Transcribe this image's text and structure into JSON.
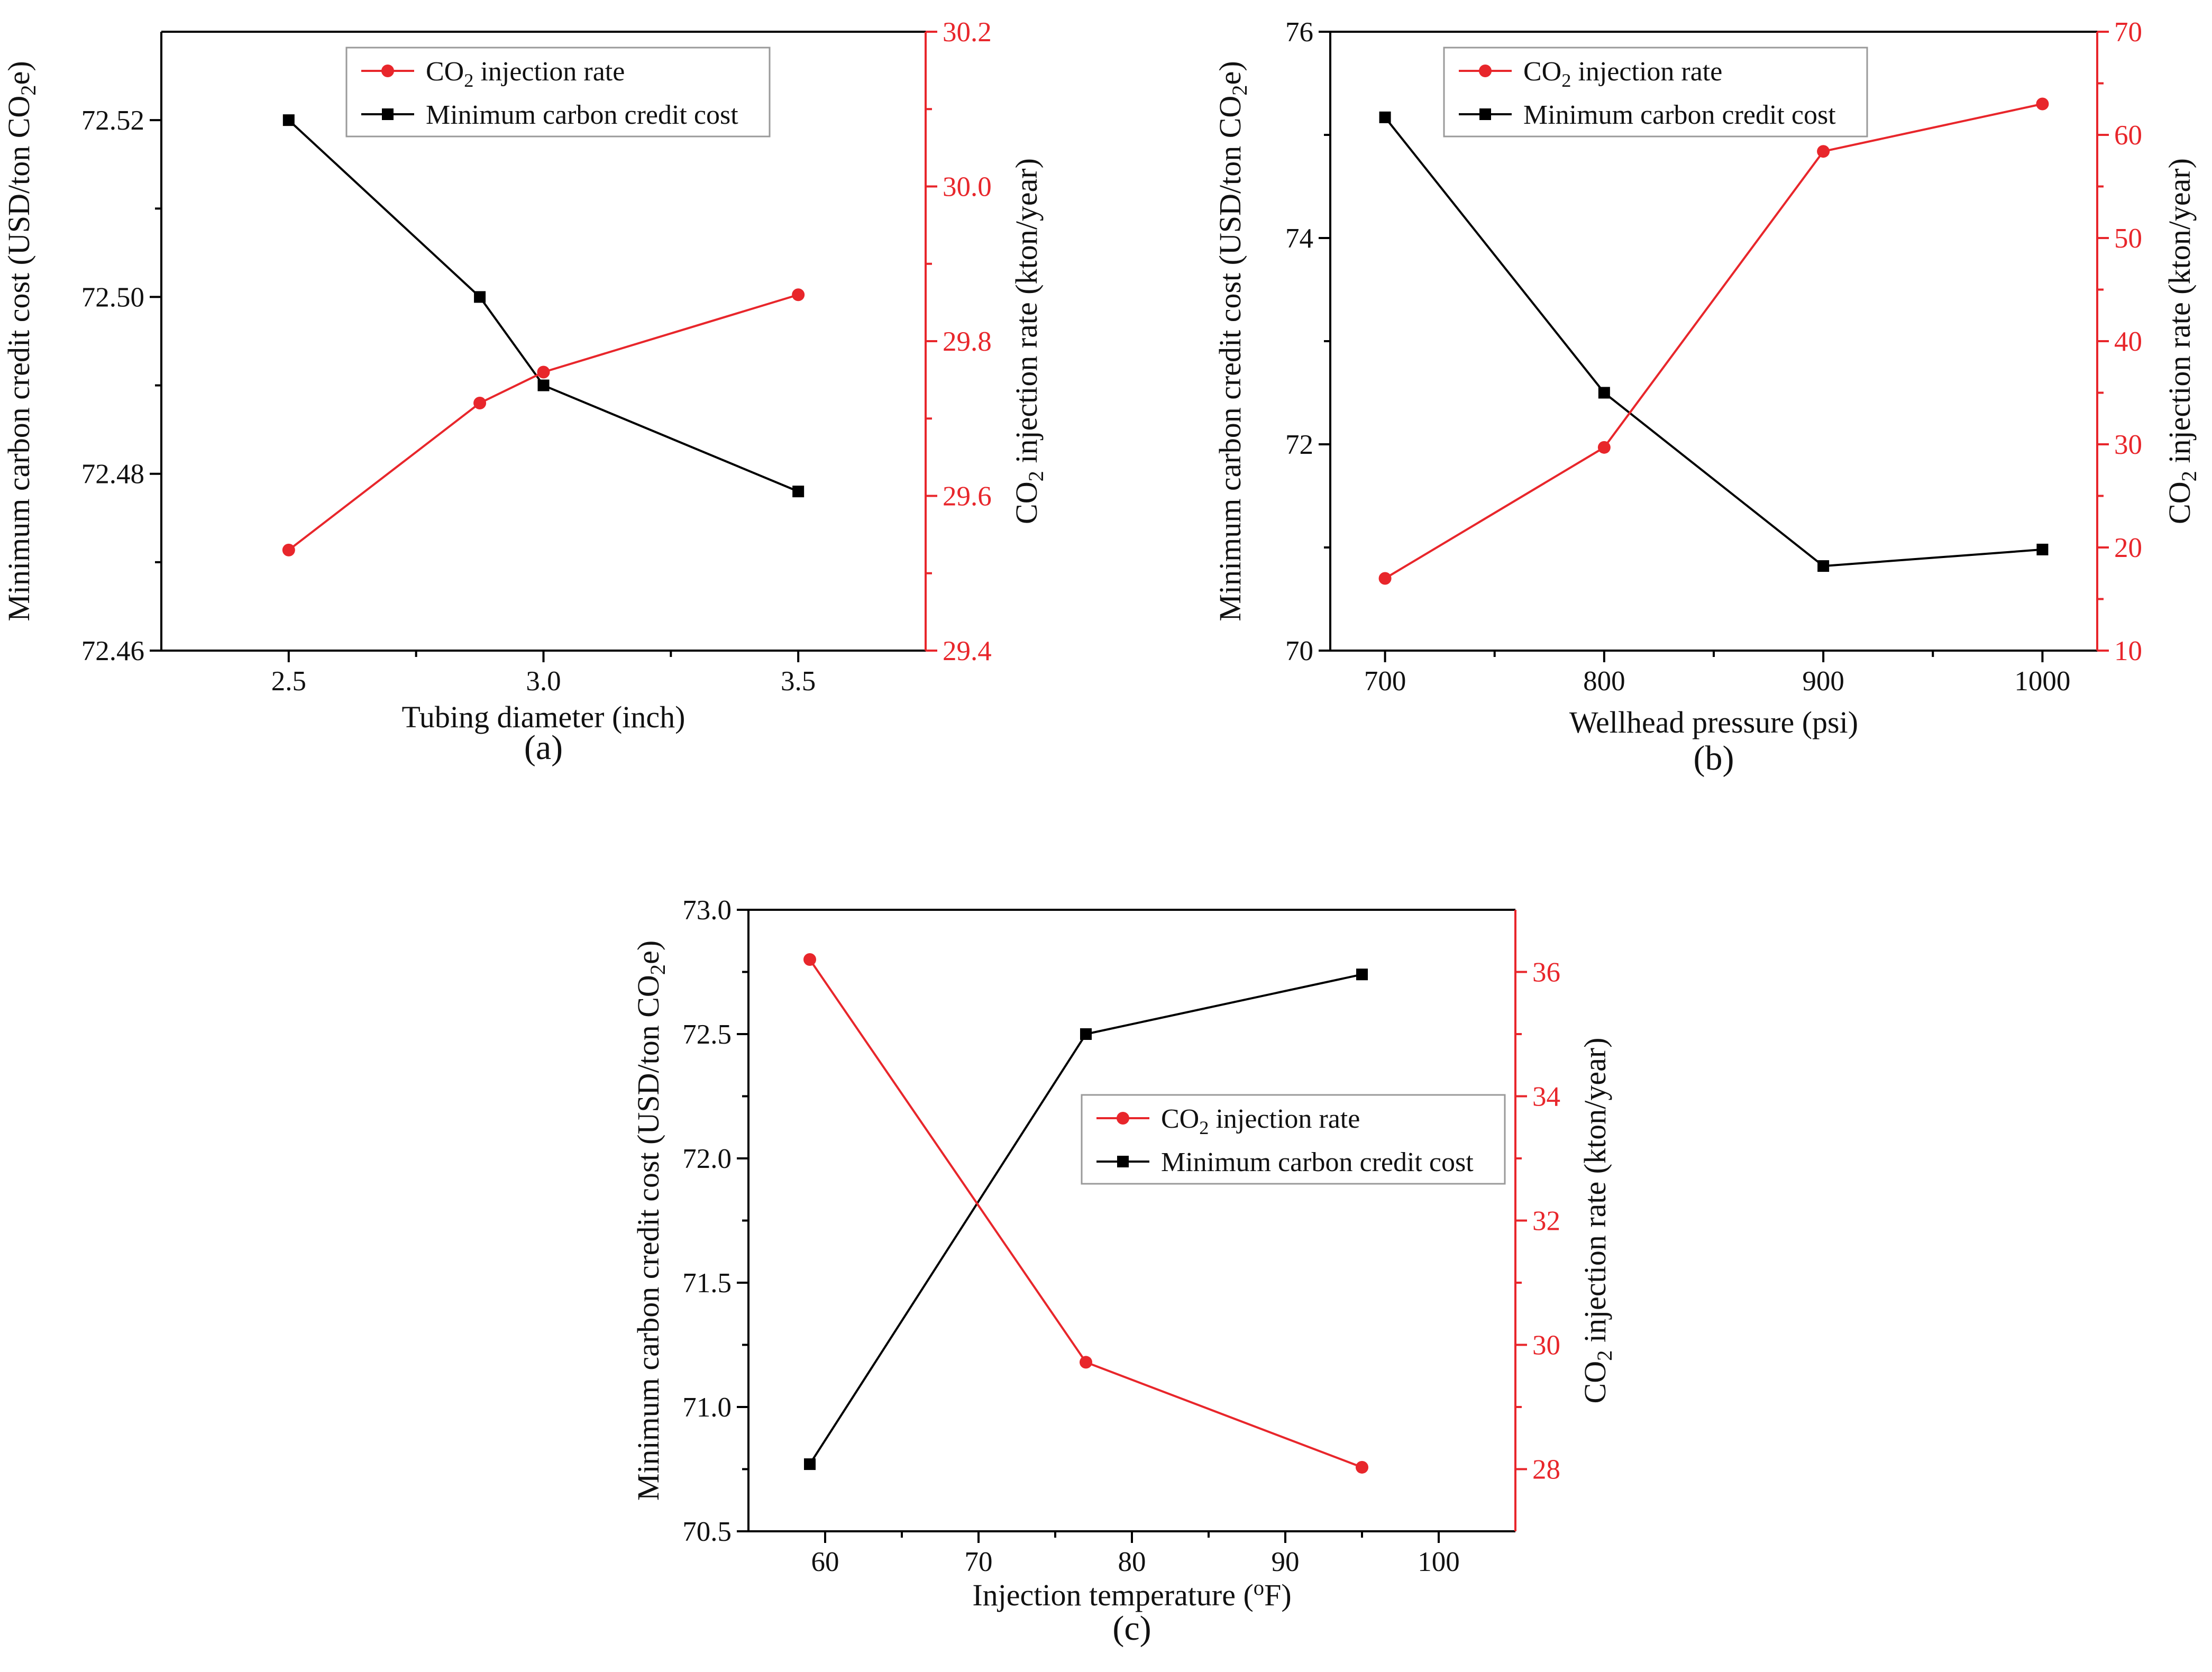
{
  "figure": {
    "co2_sub": "2"
  },
  "chart_data": [
    {
      "id": "a",
      "type": "line",
      "caption": "(a)",
      "xlabel": "Tubing diameter (inch)",
      "ylabel_left": "Minimum carbon credit cost (USD/ton CO2e)",
      "ylabel_right": "CO2 injection rate (kton/year)",
      "xlim": [
        2.25,
        3.75
      ],
      "ylim_left": [
        72.46,
        72.53
      ],
      "ylim_right": [
        29.4,
        30.2
      ],
      "xticks": [
        2.5,
        3.0,
        3.5
      ],
      "xticks_minor": [
        2.75,
        3.25
      ],
      "xtick_labels": [
        "2.5",
        "3.0",
        "3.5"
      ],
      "yticks_left": [
        72.46,
        72.48,
        72.5,
        72.52
      ],
      "ytick_labels_left": [
        "72.46",
        "72.48",
        "72.50",
        "72.52"
      ],
      "yticks_right": [
        29.4,
        29.6,
        29.8,
        30.0,
        30.2
      ],
      "ytick_labels_right": [
        "29.4",
        "29.6",
        "29.8",
        "30.0",
        "30.2"
      ],
      "legend": {
        "position": "top-right",
        "entries": [
          "CO2 injection rate",
          "Minimum carbon credit cost"
        ]
      },
      "series": [
        {
          "name": "Minimum carbon credit cost",
          "axis": "left",
          "color": "#000000",
          "marker": "square",
          "x": [
            2.5,
            2.875,
            3.0,
            3.5
          ],
          "values": [
            72.52,
            72.5,
            72.49,
            72.478
          ]
        },
        {
          "name": "CO2 injection rate",
          "axis": "right",
          "color": "#e8262b",
          "marker": "circle",
          "x": [
            2.5,
            2.875,
            3.0,
            3.5
          ],
          "values": [
            29.53,
            29.72,
            29.76,
            29.86
          ]
        }
      ]
    },
    {
      "id": "b",
      "type": "line",
      "caption": "(b)",
      "xlabel": "Wellhead pressure (psi)",
      "ylabel_left": "Minimum carbon credit cost (USD/ton CO2e)",
      "ylabel_right": "CO2 injection rate (kton/year)",
      "xlim": [
        675,
        1025
      ],
      "ylim_left": [
        70,
        76
      ],
      "ylim_right": [
        10,
        70
      ],
      "xticks": [
        700,
        800,
        900,
        1000
      ],
      "xticks_minor": [
        750,
        850,
        950
      ],
      "xtick_labels": [
        "700",
        "800",
        "900",
        "1000"
      ],
      "yticks_left": [
        70,
        72,
        74,
        76
      ],
      "ytick_labels_left": [
        "70",
        "72",
        "74",
        "76"
      ],
      "yticks_right": [
        10,
        20,
        30,
        40,
        50,
        60,
        70
      ],
      "ytick_labels_right": [
        "10",
        "20",
        "30",
        "40",
        "50",
        "60",
        "70"
      ],
      "legend": {
        "position": "top-right",
        "entries": [
          "CO2 injection rate",
          "Minimum carbon credit cost"
        ]
      },
      "series": [
        {
          "name": "Minimum carbon credit cost",
          "axis": "left",
          "color": "#000000",
          "marker": "square",
          "x": [
            700,
            800,
            900,
            1000
          ],
          "values": [
            75.17,
            72.5,
            70.82,
            70.98
          ]
        },
        {
          "name": "CO2 injection rate",
          "axis": "right",
          "color": "#e8262b",
          "marker": "circle",
          "x": [
            700,
            800,
            900,
            1000
          ],
          "values": [
            17.0,
            29.7,
            58.4,
            63.0
          ]
        }
      ]
    },
    {
      "id": "c",
      "type": "line",
      "caption": "(c)",
      "xlabel": "Injection temperature (oF)",
      "ylabel_left": "Minimum carbon credit cost (USD/ton CO2e)",
      "ylabel_right": "CO2 injection rate (kton/year)",
      "xlim": [
        55,
        105
      ],
      "ylim_left": [
        70.5,
        73.0
      ],
      "ylim_right": [
        27,
        37
      ],
      "xticks": [
        60,
        70,
        80,
        90,
        100
      ],
      "xticks_minor": [
        65,
        75,
        85,
        95
      ],
      "xtick_labels": [
        "60",
        "70",
        "80",
        "90",
        "100"
      ],
      "yticks_left": [
        70.5,
        71.0,
        71.5,
        72.0,
        72.5,
        73.0
      ],
      "ytick_labels_left": [
        "70.5",
        "71.0",
        "71.5",
        "72.0",
        "72.5",
        "73.0"
      ],
      "yticks_right": [
        28,
        30,
        32,
        34,
        36
      ],
      "ytick_labels_right": [
        "28",
        "30",
        "32",
        "34",
        "36"
      ],
      "legend": {
        "position": "center-right",
        "entries": [
          "CO2 injection rate",
          "Minimum carbon credit cost"
        ]
      },
      "series": [
        {
          "name": "Minimum carbon credit cost",
          "axis": "left",
          "color": "#000000",
          "marker": "square",
          "x": [
            59,
            77,
            95
          ],
          "values": [
            70.77,
            72.5,
            72.74
          ]
        },
        {
          "name": "CO2 injection rate",
          "axis": "right",
          "color": "#e8262b",
          "marker": "circle",
          "x": [
            59,
            77,
            95
          ],
          "values": [
            36.2,
            29.72,
            28.03
          ]
        }
      ]
    }
  ]
}
